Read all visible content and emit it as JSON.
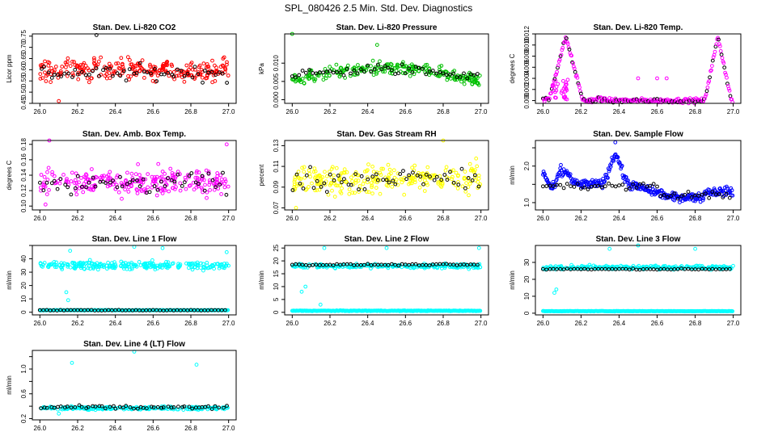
{
  "page_title": "SPL_080426  2.5 Min. Std. Dev. Diagnostics",
  "chart_data": [
    {
      "type": "scatter",
      "title": "Stan. Dev. Li-820 CO2",
      "ylabel": "Licor ppm",
      "color": "#ff0000",
      "xlim": [
        26.0,
        27.0
      ],
      "ylim": [
        0.45,
        0.76
      ],
      "yticks": [
        0.45,
        0.5,
        0.55,
        0.6,
        0.65,
        0.7,
        0.75
      ],
      "ytick_labels": [
        "0.45",
        "0.50",
        "0.55",
        "0.60",
        "0.65",
        "0.70",
        "0.75"
      ],
      "xticks": [
        26.0,
        26.2,
        26.4,
        26.6,
        26.8,
        27.0
      ],
      "xtick_labels": [
        "26.0",
        "26.2",
        "26.4",
        "26.6",
        "26.8",
        "27.0"
      ],
      "pattern": "band",
      "center": 0.6,
      "spread": 0.05,
      "black_center": 0.585,
      "black_spread": 0.035,
      "outliers": [
        [
          26.3,
          0.755
        ],
        [
          26.1,
          0.46
        ]
      ]
    },
    {
      "type": "scatter",
      "title": "Stan. Dev. Li-820 Pressure",
      "ylabel": "kPa",
      "color": "#00c000",
      "xlim": [
        26.0,
        27.0
      ],
      "ylim": [
        -0.001,
        0.018
      ],
      "yticks": [
        0.0,
        0.005,
        0.01
      ],
      "ytick_labels": [
        "0.000",
        "0.005",
        "0.010"
      ],
      "xticks": [
        26.0,
        26.2,
        26.4,
        26.6,
        26.8,
        27.0
      ],
      "xtick_labels": [
        "26.0",
        "26.2",
        "26.4",
        "26.6",
        "26.8",
        "27.0"
      ],
      "pattern": "arch",
      "center": 0.0065,
      "spread": 0.003,
      "arch_amp": 0.0035,
      "black_center": 0.0075,
      "black_spread": 0.0015,
      "outliers": [
        [
          26.0,
          0.018
        ],
        [
          26.45,
          0.015
        ]
      ]
    },
    {
      "type": "scatter",
      "title": "Stan. Dev. Li-820 Temp.",
      "ylabel": "degrees C",
      "color": "#ff00ff",
      "xlim": [
        26.0,
        27.0
      ],
      "ylim": [
        -0.0005,
        0.012
      ],
      "yticks": [
        0.0,
        0.002,
        0.004,
        0.006,
        0.008,
        0.01,
        0.012
      ],
      "ytick_labels": [
        "0.000",
        "0.002",
        "0.004",
        "0.006",
        "0.008",
        "0.010",
        "0.012"
      ],
      "xticks": [
        26.0,
        26.2,
        26.4,
        26.6,
        26.8,
        27.0
      ],
      "xtick_labels": [
        "26.0",
        "26.2",
        "26.4",
        "26.6",
        "26.8",
        "27.0"
      ],
      "pattern": "peaks",
      "peaks": [
        [
          26.12,
          0.0115,
          0.09
        ],
        [
          26.92,
          0.0115,
          0.07
        ]
      ],
      "outliers": [
        [
          26.5,
          0.004
        ],
        [
          26.6,
          0.004
        ],
        [
          26.65,
          0.004
        ]
      ]
    },
    {
      "type": "scatter",
      "title": "Stan. Dev. Amb. Box Temp.",
      "ylabel": "degrees C",
      "color": "#ff00ff",
      "xlim": [
        26.0,
        27.0
      ],
      "ylim": [
        0.095,
        0.185
      ],
      "yticks": [
        0.1,
        0.12,
        0.14,
        0.16,
        0.18
      ],
      "ytick_labels": [
        "0.10",
        "0.12",
        "0.14",
        "0.16",
        "0.18"
      ],
      "xticks": [
        26.0,
        26.2,
        26.4,
        26.6,
        26.8,
        27.0
      ],
      "xtick_labels": [
        "26.0",
        "26.2",
        "26.4",
        "26.6",
        "26.8",
        "27.0"
      ],
      "pattern": "band",
      "center": 0.132,
      "spread": 0.018,
      "black_center": 0.13,
      "black_spread": 0.015,
      "outliers": [
        [
          26.05,
          0.185
        ],
        [
          26.99,
          0.18
        ],
        [
          26.03,
          0.102
        ]
      ]
    },
    {
      "type": "scatter",
      "title": "Stan. Dev. Gas Stream RH",
      "ylabel": "percent",
      "color": "#ffff00",
      "xlim": [
        26.0,
        27.0
      ],
      "ylim": [
        0.068,
        0.135
      ],
      "yticks": [
        0.07,
        0.09,
        0.11,
        0.13
      ],
      "ytick_labels": [
        "0.07",
        "0.09",
        "0.11",
        "0.13"
      ],
      "xticks": [
        26.0,
        26.2,
        26.4,
        26.6,
        26.8,
        27.0
      ],
      "xtick_labels": [
        "26.0",
        "26.2",
        "26.4",
        "26.6",
        "26.8",
        "27.0"
      ],
      "pattern": "band",
      "center": 0.098,
      "spread": 0.014,
      "black_center": 0.098,
      "black_spread": 0.012,
      "outliers": [
        [
          26.02,
          0.07
        ],
        [
          26.8,
          0.135
        ]
      ]
    },
    {
      "type": "scatter",
      "title": "Stan. Dev. Sample Flow",
      "ylabel": "ml/min",
      "color": "#0000ff",
      "xlim": [
        26.0,
        27.0
      ],
      "ylim": [
        0.8,
        2.7
      ],
      "yticks": [
        1.0,
        1.5,
        2.0,
        2.5
      ],
      "ytick_labels": [
        "1.0",
        "",
        "2.0",
        ""
      ],
      "xticks": [
        26.0,
        26.2,
        26.4,
        26.6,
        26.8,
        27.0
      ],
      "xtick_labels": [
        "26.0",
        "26.2",
        "26.4",
        "26.6",
        "26.8",
        "27.0"
      ],
      "pattern": "flow",
      "outliers": [
        [
          26.38,
          2.65
        ]
      ]
    },
    {
      "type": "scatter",
      "title": "Stan. Dev. Line 1 Flow",
      "ylabel": "ml/min",
      "color": "#00ffff",
      "xlim": [
        26.0,
        27.0
      ],
      "ylim": [
        -2,
        50
      ],
      "yticks": [
        0,
        10,
        20,
        30,
        40,
        50
      ],
      "ytick_labels": [
        "0",
        "10",
        "20",
        "30",
        "40",
        ""
      ],
      "xticks": [
        26.0,
        26.2,
        26.4,
        26.6,
        26.8,
        27.0
      ],
      "xtick_labels": [
        "26.0",
        "26.2",
        "26.4",
        "26.6",
        "26.8",
        "27.0"
      ],
      "pattern": "twolevel",
      "high_center": 35,
      "high_spread": 3,
      "low": 1.5,
      "black_level": 1.5,
      "outliers": [
        [
          26.14,
          15
        ],
        [
          26.15,
          9
        ],
        [
          26.16,
          46
        ],
        [
          26.5,
          49
        ],
        [
          26.65,
          48
        ],
        [
          26.99,
          45
        ]
      ]
    },
    {
      "type": "scatter",
      "title": "Stan. Dev. Line 2 Flow",
      "ylabel": "ml/min",
      "color": "#00ffff",
      "xlim": [
        26.0,
        27.0
      ],
      "ylim": [
        -1,
        26
      ],
      "yticks": [
        0,
        5,
        10,
        15,
        20,
        25
      ],
      "ytick_labels": [
        "0",
        "5",
        "10",
        "15",
        "20",
        "25"
      ],
      "xticks": [
        26.0,
        26.2,
        26.4,
        26.6,
        26.8,
        27.0
      ],
      "xtick_labels": [
        "26.0",
        "26.2",
        "26.4",
        "26.6",
        "26.8",
        "27.0"
      ],
      "pattern": "twolevel",
      "high_center": 18,
      "high_spread": 0.8,
      "low": 0.6,
      "black_level": 18.5,
      "outliers": [
        [
          26.05,
          8
        ],
        [
          26.07,
          10
        ],
        [
          26.15,
          3
        ],
        [
          26.17,
          25
        ],
        [
          26.5,
          25
        ],
        [
          26.99,
          25
        ]
      ]
    },
    {
      "type": "scatter",
      "title": "Stan. Dev. Line 3 Flow",
      "ylabel": "ml/min",
      "color": "#00ffff",
      "xlim": [
        26.0,
        27.0
      ],
      "ylim": [
        -1,
        40
      ],
      "yticks": [
        0,
        10,
        20,
        30
      ],
      "ytick_labels": [
        "0",
        "10",
        "20",
        "30"
      ],
      "xticks": [
        26.0,
        26.2,
        26.4,
        26.6,
        26.8,
        27.0
      ],
      "xtick_labels": [
        "26.0",
        "26.2",
        "26.4",
        "26.6",
        "26.8",
        "27.0"
      ],
      "pattern": "twolevel",
      "high_center": 27,
      "high_spread": 1.2,
      "low": 1.2,
      "black_level": 26,
      "outliers": [
        [
          26.06,
          12
        ],
        [
          26.07,
          14
        ],
        [
          26.35,
          38
        ],
        [
          26.5,
          40
        ],
        [
          26.8,
          38
        ]
      ]
    },
    {
      "type": "scatter",
      "title": "Stan. Dev. Line 4 (LT) Flow",
      "ylabel": "ml/min",
      "color": "#00ffff",
      "xlim": [
        26.0,
        27.0
      ],
      "ylim": [
        0.18,
        1.3
      ],
      "yticks": [
        0.2,
        0.4,
        0.6,
        0.8,
        1.0,
        1.2
      ],
      "ytick_labels": [
        "0.2",
        "",
        "0.6",
        "",
        "1.0",
        ""
      ],
      "xticks": [
        26.0,
        26.2,
        26.4,
        26.6,
        26.8,
        27.0
      ],
      "xtick_labels": [
        "26.0",
        "26.2",
        "26.4",
        "26.6",
        "26.8",
        "27.0"
      ],
      "pattern": "band",
      "center": 0.37,
      "spread": 0.025,
      "black_center": 0.38,
      "black_spread": 0.03,
      "outliers": [
        [
          26.17,
          1.1
        ],
        [
          26.5,
          1.28
        ],
        [
          26.83,
          1.07
        ],
        [
          26.1,
          0.28
        ]
      ]
    }
  ]
}
